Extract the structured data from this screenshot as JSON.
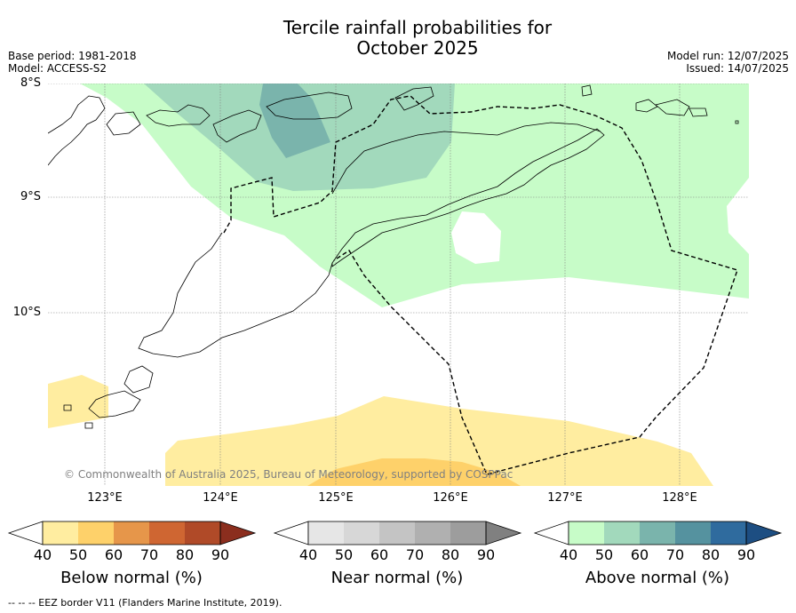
{
  "title": {
    "line1": "Tercile rainfall probabilities for",
    "line2": "October 2025"
  },
  "meta": {
    "base_period": "Base period: 1981-2018",
    "model": "Model: ACCESS-S2",
    "model_run": "Model run: 12/07/2025",
    "issued": "Issued: 14/07/2025"
  },
  "map": {
    "lat_labels": [
      "8°S",
      "9°S",
      "10°S"
    ],
    "lon_labels": [
      "123°E",
      "124°E",
      "125°E",
      "126°E",
      "127°E",
      "128°E"
    ],
    "copyright": "© Commonwealth of Australia 2025, Bureau of Meteorology, supported by COSPPac",
    "colors": {
      "land_outline": "#000000",
      "eez_border": "#000000",
      "gridline": "#808080"
    }
  },
  "legends": [
    {
      "title": "Below normal (%)",
      "ticks": [
        "40",
        "50",
        "60",
        "70",
        "80",
        "90"
      ],
      "colors": [
        "#ffffff",
        "#ffeda0",
        "#fed16a",
        "#e6964a",
        "#cf6632",
        "#b04a28",
        "#8b2e1e"
      ]
    },
    {
      "title": "Near normal (%)",
      "ticks": [
        "40",
        "50",
        "60",
        "70",
        "80",
        "90"
      ],
      "colors": [
        "#ffffff",
        "#e6e6e6",
        "#d7d7d7",
        "#c4c4c4",
        "#b0b0b0",
        "#9d9d9d",
        "#808080"
      ]
    },
    {
      "title": "Above normal (%)",
      "ticks": [
        "40",
        "50",
        "60",
        "70",
        "80",
        "90"
      ],
      "colors": [
        "#ffffff",
        "#c7fcc8",
        "#a2d9bc",
        "#7ab4ac",
        "#55929f",
        "#2f6b9e",
        "#1d4e82"
      ]
    }
  ],
  "footnote": "--  --  -- EEZ border V11 (Flanders Marine Institute, 2019)."
}
